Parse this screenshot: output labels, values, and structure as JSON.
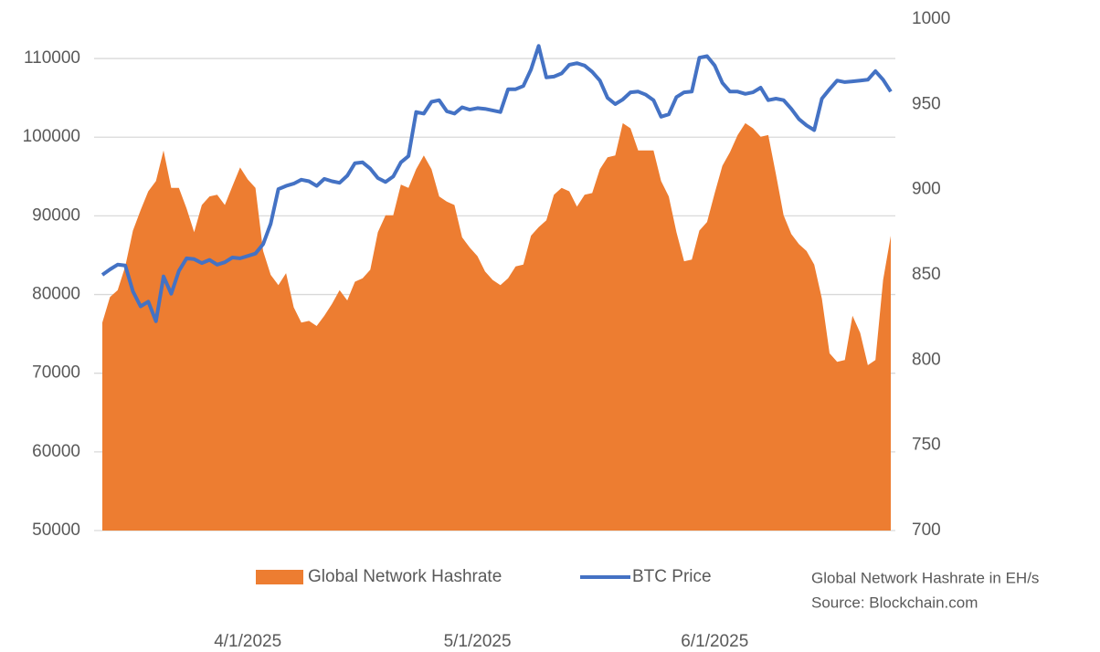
{
  "chart_data": {
    "type": "line",
    "x": [
      "2025-03-13",
      "2025-03-14",
      "2025-03-15",
      "2025-03-16",
      "2025-03-17",
      "2025-03-18",
      "2025-03-19",
      "2025-03-20",
      "2025-03-21",
      "2025-03-22",
      "2025-03-23",
      "2025-03-24",
      "2025-03-25",
      "2025-03-26",
      "2025-03-27",
      "2025-03-28",
      "2025-03-29",
      "2025-03-30",
      "2025-03-31",
      "2025-04-01",
      "2025-04-02",
      "2025-04-03",
      "2025-04-04",
      "2025-04-05",
      "2025-04-06",
      "2025-04-07",
      "2025-04-08",
      "2025-04-09",
      "2025-04-10",
      "2025-04-11",
      "2025-04-12",
      "2025-04-13",
      "2025-04-14",
      "2025-04-15",
      "2025-04-16",
      "2025-04-17",
      "2025-04-18",
      "2025-04-19",
      "2025-04-20",
      "2025-04-21",
      "2025-04-22",
      "2025-04-23",
      "2025-04-24",
      "2025-04-25",
      "2025-04-26",
      "2025-04-27",
      "2025-04-28",
      "2025-04-29",
      "2025-04-30",
      "2025-05-01",
      "2025-05-02",
      "2025-05-03",
      "2025-05-04",
      "2025-05-05",
      "2025-05-06",
      "2025-05-07",
      "2025-05-08",
      "2025-05-09",
      "2025-05-10",
      "2025-05-11",
      "2025-05-12",
      "2025-05-13",
      "2025-05-14",
      "2025-05-15",
      "2025-05-16",
      "2025-05-17",
      "2025-05-18",
      "2025-05-19",
      "2025-05-20",
      "2025-05-21",
      "2025-05-22",
      "2025-05-23",
      "2025-05-24",
      "2025-05-25",
      "2025-05-26",
      "2025-05-27",
      "2025-05-28",
      "2025-05-29",
      "2025-05-30",
      "2025-05-31",
      "2025-06-01",
      "2025-06-02",
      "2025-06-03",
      "2025-06-04",
      "2025-06-05",
      "2025-06-06",
      "2025-06-07",
      "2025-06-08",
      "2025-06-09",
      "2025-06-10",
      "2025-06-11",
      "2025-06-12",
      "2025-06-13",
      "2025-06-14",
      "2025-06-15",
      "2025-06-16",
      "2025-06-17",
      "2025-06-18",
      "2025-06-19",
      "2025-06-20",
      "2025-06-21",
      "2025-06-22",
      "2025-06-23",
      "2025-06-24"
    ],
    "xlim": [
      "2025-03-13",
      "2025-06-24"
    ],
    "xticks": [
      {
        "value": "2025-04-01",
        "label": "4/1/2025"
      },
      {
        "value": "2025-05-01",
        "label": "5/1/2025"
      },
      {
        "value": "2025-06-01",
        "label": "6/1/2025"
      }
    ],
    "ylim": [
      50000,
      115000
    ],
    "yticks": [
      50000,
      60000,
      70000,
      80000,
      90000,
      100000,
      110000
    ],
    "y2lim": [
      700,
      1000
    ],
    "y2ticks": [
      700,
      750,
      800,
      850,
      900,
      950,
      1000
    ],
    "grid": true,
    "series": [
      {
        "name": "Global Network Hashrate",
        "type": "area",
        "axis": "y2",
        "color": "#ed7d31",
        "values": [
          822,
          837,
          841,
          855,
          876,
          888,
          899,
          905,
          923,
          901,
          901,
          889,
          875,
          891,
          896,
          897,
          891,
          902,
          913,
          906,
          901,
          864,
          850,
          844,
          851,
          831,
          822,
          823,
          820,
          826,
          833,
          841,
          835,
          846,
          848,
          853,
          875,
          885,
          885,
          903,
          901,
          912,
          920,
          912,
          896,
          893,
          891,
          872,
          866,
          861,
          852,
          847,
          844,
          848,
          855,
          856,
          873,
          878,
          882,
          897,
          901,
          899,
          890,
          897,
          898,
          912,
          919,
          920,
          939,
          936,
          923,
          923,
          923,
          905,
          896,
          875,
          858,
          859,
          876,
          881,
          898,
          914,
          922,
          932,
          939,
          936,
          931,
          932,
          909,
          885,
          874,
          868,
          864,
          856,
          836,
          804,
          799,
          800,
          826,
          816,
          797,
          800,
          847,
          873
        ]
      },
      {
        "name": "BTC Price",
        "type": "line",
        "color": "#4472c4",
        "values": [
          82500,
          83200,
          83800,
          83700,
          80400,
          78500,
          79100,
          76600,
          82300,
          80100,
          83000,
          84600,
          84500,
          84000,
          84400,
          83800,
          84100,
          84700,
          84600,
          84900,
          85200,
          86400,
          89000,
          93400,
          93800,
          94100,
          94600,
          94400,
          93800,
          94700,
          94400,
          94200,
          95100,
          96700,
          96800,
          96000,
          94800,
          94300,
          95000,
          96800,
          97600,
          103200,
          103000,
          104500,
          104700,
          103300,
          103000,
          103800,
          103500,
          103700,
          103600,
          103400,
          103200,
          106100,
          106100,
          106500,
          108600,
          111600,
          107600,
          107700,
          108100,
          109200,
          109400,
          109100,
          108300,
          107200,
          105000,
          104200,
          104800,
          105700,
          105800,
          105400,
          104700,
          102600,
          102900,
          105100,
          105700,
          105800,
          110100,
          110300,
          109100,
          106900,
          105800,
          105800,
          105500,
          105700,
          106300,
          104700,
          104900,
          104700,
          103600,
          102300,
          101500,
          100900,
          104900,
          106100,
          107200,
          107000,
          107100,
          107200,
          107300,
          108400,
          107300,
          105800
        ]
      }
    ],
    "annotations": [
      "Global Network Hashrate in EH/s",
      "Source: Blockchain.com"
    ]
  }
}
